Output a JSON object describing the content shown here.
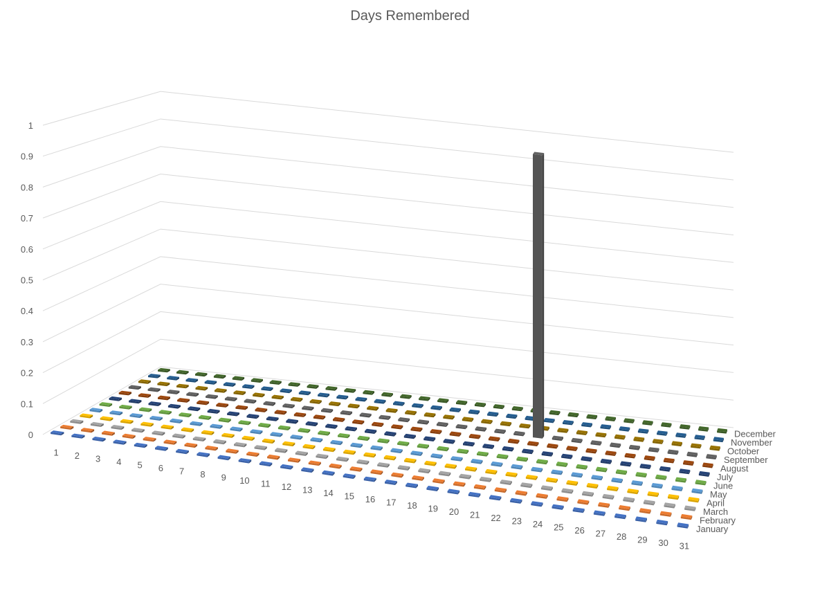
{
  "chart_data": {
    "type": "bar",
    "title": "Days Remembered",
    "xlabel": "",
    "ylabel": "",
    "zlim": [
      0,
      1
    ],
    "z_ticks": [
      "0",
      "0.1",
      "0.2",
      "0.3",
      "0.4",
      "0.5",
      "0.6",
      "0.7",
      "0.8",
      "0.9",
      "1"
    ],
    "grid": true,
    "categories": [
      "1",
      "2",
      "3",
      "4",
      "5",
      "6",
      "7",
      "8",
      "9",
      "10",
      "11",
      "12",
      "13",
      "14",
      "15",
      "16",
      "17",
      "18",
      "19",
      "20",
      "21",
      "22",
      "23",
      "24",
      "25",
      "26",
      "27",
      "28",
      "29",
      "30",
      "31"
    ],
    "series": [
      {
        "name": "January",
        "color": "#4472C4",
        "values": [
          0,
          0,
          0,
          0,
          0,
          0,
          0,
          0,
          0,
          0,
          0,
          0,
          0,
          0,
          0,
          0,
          0,
          0,
          0,
          0,
          0,
          0,
          0,
          0,
          0,
          0,
          0,
          0,
          0,
          0,
          0
        ]
      },
      {
        "name": "February",
        "color": "#ED7D31",
        "values": [
          0,
          0,
          0,
          0,
          0,
          0,
          0,
          0,
          0,
          0,
          0,
          0,
          0,
          0,
          0,
          0,
          0,
          0,
          0,
          0,
          0,
          0,
          0,
          0,
          0,
          0,
          0,
          0,
          0,
          0,
          0
        ]
      },
      {
        "name": "March",
        "color": "#A5A5A5",
        "values": [
          0,
          0,
          0,
          0,
          0,
          0,
          0,
          0,
          0,
          0,
          0,
          0,
          0,
          0,
          0,
          0,
          0,
          0,
          0,
          0,
          0,
          0,
          0,
          0,
          0,
          0,
          0,
          0,
          0,
          0,
          0
        ]
      },
      {
        "name": "April",
        "color": "#FFC000",
        "values": [
          0,
          0,
          0,
          0,
          0,
          0,
          0,
          0,
          0,
          0,
          0,
          0,
          0,
          0,
          0,
          0,
          0,
          0,
          0,
          0,
          0,
          0,
          0,
          0,
          0,
          0,
          0,
          0,
          0,
          0,
          0
        ]
      },
      {
        "name": "May",
        "color": "#5B9BD5",
        "values": [
          0,
          0,
          0,
          0,
          0,
          0,
          0,
          0,
          0,
          0,
          0,
          0,
          0,
          0,
          0,
          0,
          0,
          0,
          0,
          0,
          0,
          0,
          0,
          0,
          0,
          0,
          0,
          0,
          0,
          0,
          0
        ]
      },
      {
        "name": "June",
        "color": "#70AD47",
        "values": [
          0,
          0,
          0,
          0,
          0,
          0,
          0,
          0,
          0,
          0,
          0,
          0,
          0,
          0,
          0,
          0,
          0,
          0,
          0,
          0,
          0,
          0,
          0,
          0,
          0,
          0,
          0,
          0,
          0,
          0,
          0
        ]
      },
      {
        "name": "July",
        "color": "#264478",
        "values": [
          0,
          0,
          0,
          0,
          0,
          0,
          0,
          0,
          0,
          0,
          0,
          0,
          0,
          0,
          0,
          0,
          0,
          0,
          0,
          0,
          0,
          0,
          0,
          0,
          0,
          0,
          0,
          0,
          0,
          0,
          0
        ]
      },
      {
        "name": "August",
        "color": "#9E480E",
        "values": [
          0,
          0,
          0,
          0,
          0,
          0,
          0,
          0,
          0,
          0,
          0,
          0,
          0,
          0,
          0,
          0,
          0,
          0,
          0,
          0,
          0,
          0,
          0,
          0,
          0,
          0,
          0,
          0,
          0,
          0,
          0
        ]
      },
      {
        "name": "September",
        "color": "#636363",
        "values": [
          0,
          0,
          0,
          0,
          0,
          0,
          0,
          0,
          0,
          0,
          0,
          0,
          0,
          0,
          0,
          0,
          0,
          0,
          0,
          0,
          0,
          1,
          0,
          0,
          0,
          0,
          0,
          0,
          0,
          0,
          0
        ]
      },
      {
        "name": "October",
        "color": "#997300",
        "values": [
          0,
          0,
          0,
          0,
          0,
          0,
          0,
          0,
          0,
          0,
          0,
          0,
          0,
          0,
          0,
          0,
          0,
          0,
          0,
          0,
          0,
          0,
          0,
          0,
          0,
          0,
          0,
          0,
          0,
          0,
          0
        ]
      },
      {
        "name": "November",
        "color": "#255E91",
        "values": [
          0,
          0,
          0,
          0,
          0,
          0,
          0,
          0,
          0,
          0,
          0,
          0,
          0,
          0,
          0,
          0,
          0,
          0,
          0,
          0,
          0,
          0,
          0,
          0,
          0,
          0,
          0,
          0,
          0,
          0,
          0
        ]
      },
      {
        "name": "December",
        "color": "#43682B",
        "values": [
          0,
          0,
          0,
          0,
          0,
          0,
          0,
          0,
          0,
          0,
          0,
          0,
          0,
          0,
          0,
          0,
          0,
          0,
          0,
          0,
          0,
          0,
          0,
          0,
          0,
          0,
          0,
          0,
          0,
          0,
          0
        ]
      }
    ]
  }
}
